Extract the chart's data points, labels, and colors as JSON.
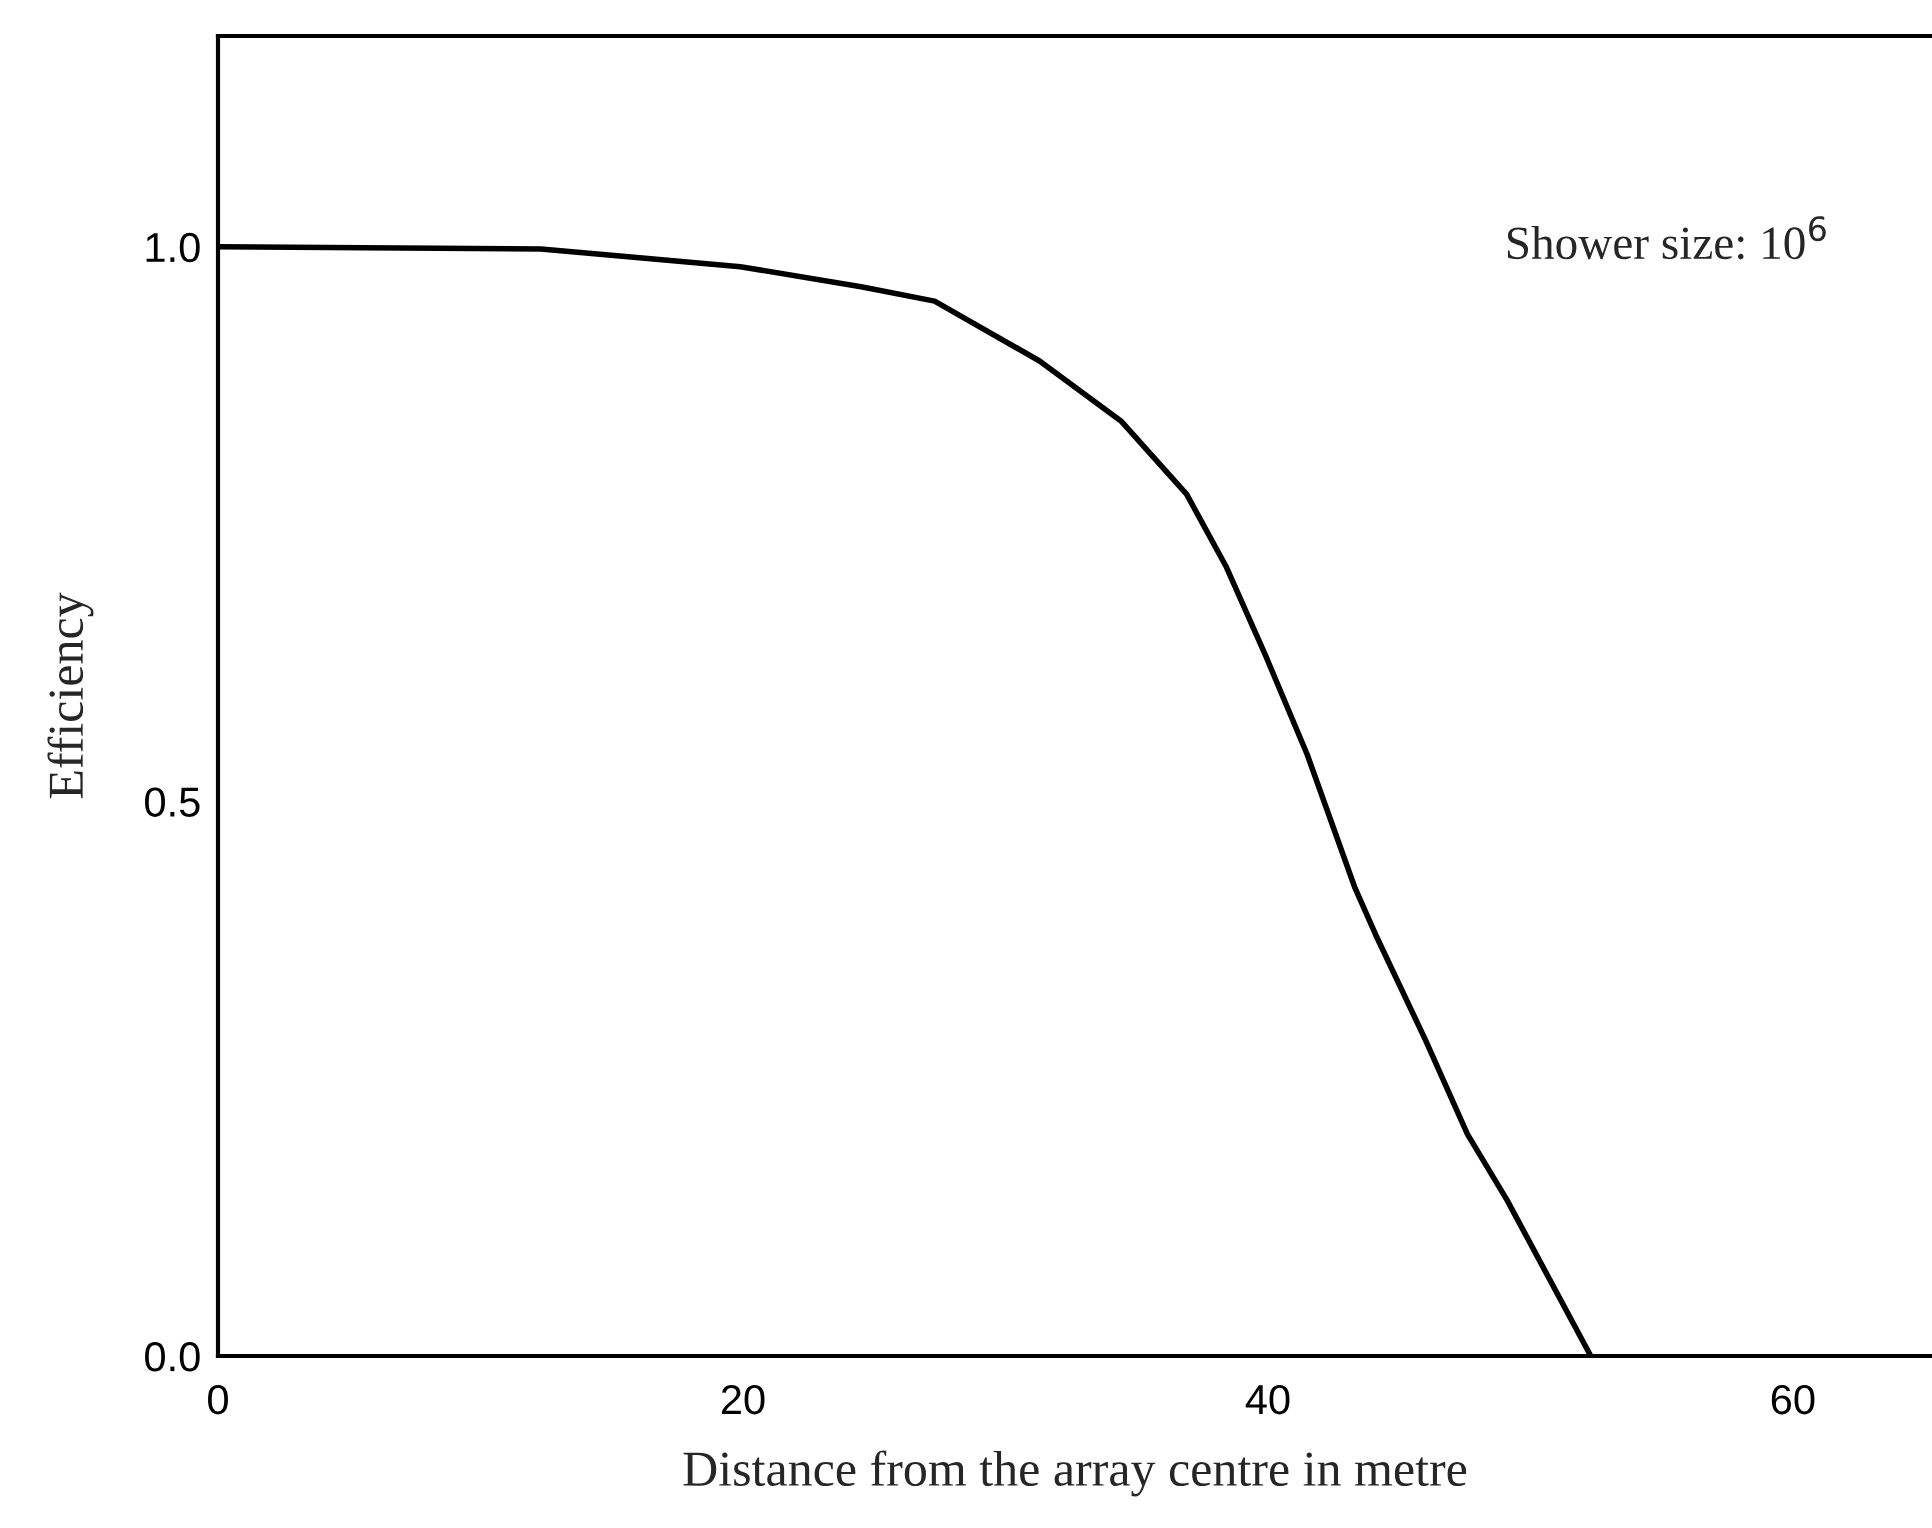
{
  "chart_data": {
    "type": "line",
    "xlabel": "Distance from the array centre in metre",
    "ylabel": "Efficiency",
    "annotations": [
      "Shower size: 10$^{6}$"
    ],
    "series": [
      {
        "color": "#000000",
        "x": [
          0,
          12.3,
          19.9,
          24.5,
          27.3,
          31.3,
          34.4,
          36.9,
          38.4,
          39.9,
          41.5,
          43.3,
          44.1,
          46.0,
          47.6,
          49.1,
          52.3
        ],
        "values": [
          1.0,
          0.998,
          0.982,
          0.964,
          0.951,
          0.897,
          0.843,
          0.777,
          0.712,
          0.632,
          0.542,
          0.423,
          0.38,
          0.285,
          0.2,
          0.141,
          0.0
        ]
      }
    ],
    "xlim": [
      0,
      65.3
    ],
    "ylim": [
      0,
      1.19
    ],
    "xticks": [
      0,
      20,
      40,
      60
    ],
    "yticks": [
      {
        "value": 0,
        "label": "0.0"
      },
      {
        "value": 0.5,
        "label": "0.5"
      },
      {
        "value": 1,
        "label": "1.0"
      }
    ],
    "grid": false,
    "legend": false,
    "marker": "none",
    "line_style": "solid"
  }
}
